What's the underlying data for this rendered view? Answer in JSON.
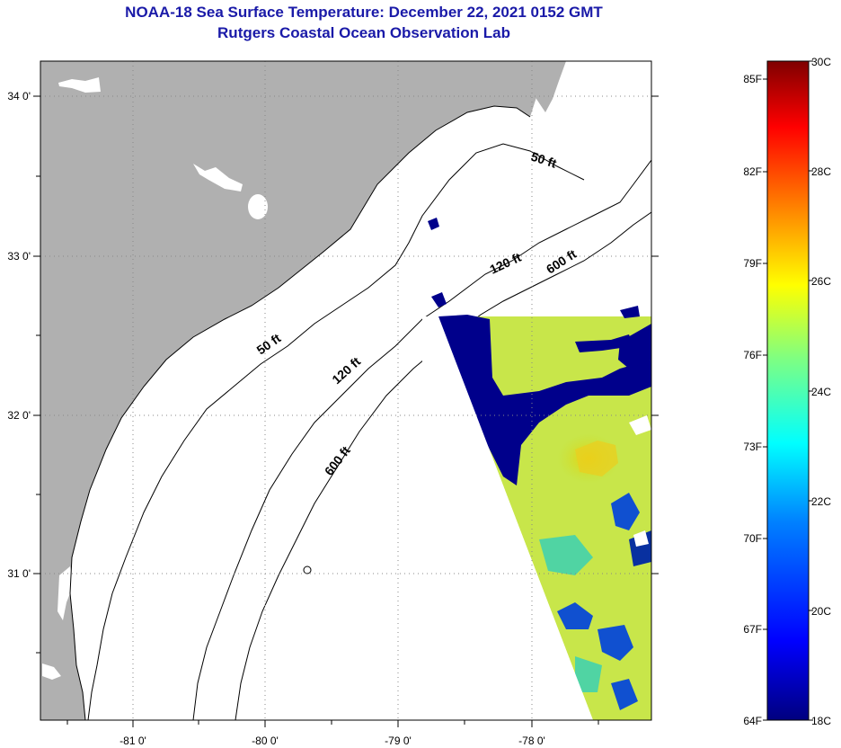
{
  "header": {
    "title": "NOAA-18 Sea Surface Temperature:  December 22, 2021 0152 GMT",
    "subtitle": "Rutgers Coastal Ocean Observation Lab"
  },
  "map": {
    "lon_ticks": [
      "-81 0'",
      "-80 0'",
      "-79 0'",
      "-78 0'"
    ],
    "lat_ticks": [
      "34 0'",
      "33 0'",
      "32 0'",
      "31 0'"
    ],
    "contours": [
      "50 ft",
      "120 ft",
      "600 ft",
      "50 ft",
      "120 ft",
      "600 ft"
    ],
    "colors": {
      "land": "#b0b0b0",
      "frame": "#000000"
    }
  },
  "colorbar": {
    "fahrenheit": [
      "85F",
      "82F",
      "79F",
      "76F",
      "73F",
      "70F",
      "67F",
      "64F"
    ],
    "celsius": [
      "30C",
      "28C",
      "26C",
      "24C",
      "22C",
      "20C",
      "18C"
    ],
    "range_c": [
      18,
      30
    ],
    "colors": [
      "#00007f",
      "#0000ff",
      "#0080ff",
      "#00ffff",
      "#80ff80",
      "#ffff00",
      "#ff8000",
      "#ff0000",
      "#7f0000"
    ]
  }
}
